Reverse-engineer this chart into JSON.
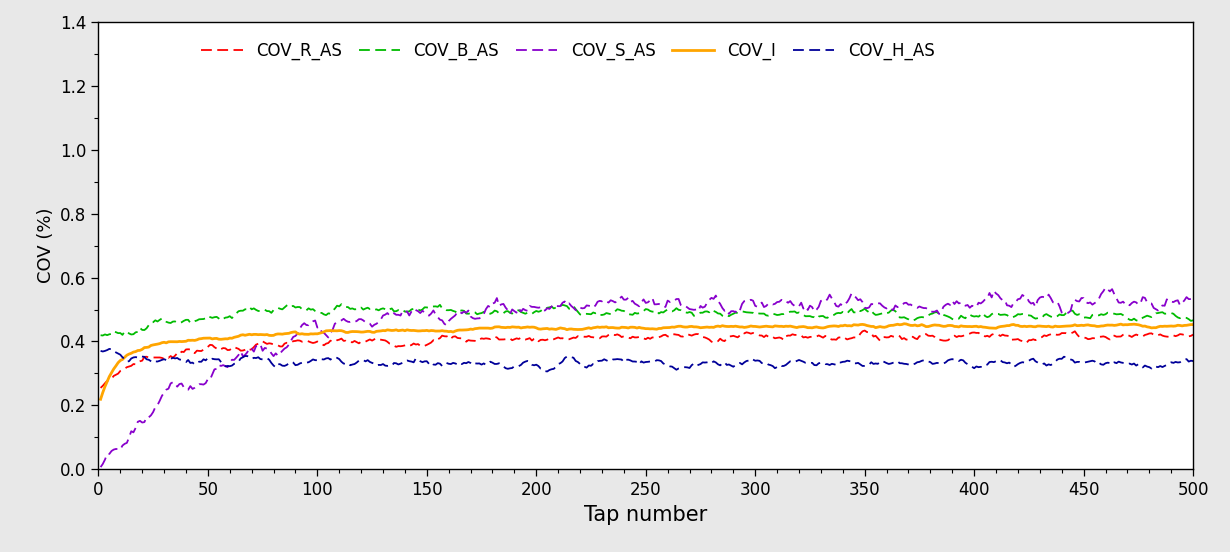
{
  "series": {
    "COV_R_AS": {
      "color": "#FF0000",
      "linestyle": "--",
      "linewidth": 1.3,
      "dashes": [
        6,
        3
      ]
    },
    "COV_B_AS": {
      "color": "#00BB00",
      "linestyle": "--",
      "linewidth": 1.3,
      "dashes": [
        6,
        3
      ]
    },
    "COV_S_AS": {
      "color": "#8800CC",
      "linestyle": "--",
      "linewidth": 1.3,
      "dashes": [
        6,
        3
      ]
    },
    "COV_I": {
      "color": "#FFA500",
      "linestyle": "-",
      "linewidth": 2.0,
      "dashes": []
    },
    "COV_H_AS": {
      "color": "#000099",
      "linestyle": "--",
      "linewidth": 1.3,
      "dashes": [
        6,
        3
      ]
    }
  },
  "xlabel": "Tap number",
  "ylabel": "COV (%)",
  "xlim": [
    0,
    500
  ],
  "ylim": [
    0,
    1.4
  ],
  "xticks": [
    0,
    50,
    100,
    150,
    200,
    250,
    300,
    350,
    400,
    450,
    500
  ],
  "yticks": [
    0,
    0.2,
    0.4,
    0.6,
    0.8,
    1.0,
    1.2,
    1.4
  ],
  "background_color": "#FFFFFF",
  "outer_background": "#E8E8E8",
  "xlabel_fontsize": 15,
  "ylabel_fontsize": 13,
  "tick_fontsize": 12,
  "legend_fontsize": 12,
  "figsize": [
    12.3,
    5.52
  ],
  "dpi": 100
}
